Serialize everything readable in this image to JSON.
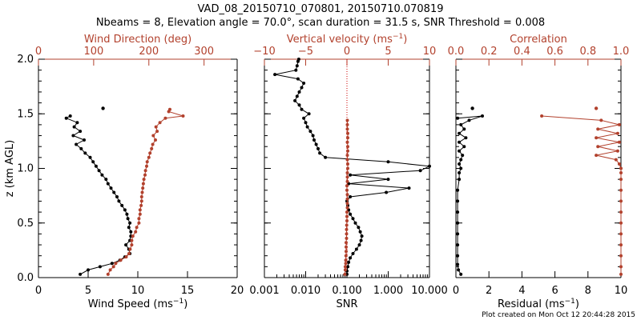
{
  "figure": {
    "title_line1": "VAD_08_20150710_070801, 20150710.070819",
    "title_line2": "Nbeams = 8, Elevation angle = 70.0°, scan duration = 31.5 s, SNR Threshold = 0.008",
    "credit": "Plot created on Mon Oct 12 20:44:28 2015"
  },
  "colors": {
    "primary": "#000000",
    "secondary": "#b2412d",
    "zero_line": "#cc0000"
  },
  "chart_data": [
    {
      "type": "line",
      "ylabel": "z (km AGL)",
      "ylim": [
        0,
        2
      ],
      "yticks": [
        0.0,
        0.5,
        1.0,
        1.5,
        2.0
      ],
      "yticklabels": [
        "0.0",
        "0.5",
        "1.0",
        "1.5",
        "2.0"
      ],
      "xlim_bottom": [
        0,
        20
      ],
      "xticks_bottom": [
        0,
        5,
        10,
        15,
        20
      ],
      "xticklabels_bottom": [
        "0",
        "5",
        "10",
        "15",
        "20"
      ],
      "xlabel_bottom": "Wind Speed (ms",
      "xlabel_bottom_sup": "−1",
      "xlabel_bottom_end": ")",
      "xlim_top": [
        0,
        360
      ],
      "xticks_top": [
        0,
        100,
        200,
        300
      ],
      "xticklabels_top": [
        "0",
        "100",
        "200",
        "300"
      ],
      "xlabel_top": "Wind Direction (deg)",
      "xlabel_top_sup": "",
      "xlabel_top_end": "",
      "series": [
        {
          "name": "Wind Speed",
          "axis": "bottom",
          "color": "#000000",
          "points": [
            [
              4.2,
              0.03
            ],
            [
              5.0,
              0.07
            ],
            [
              6.2,
              0.1
            ],
            [
              7.4,
              0.13
            ],
            [
              8.2,
              0.16
            ],
            [
              8.7,
              0.19
            ],
            [
              9.2,
              0.22
            ],
            [
              9.1,
              0.26
            ],
            [
              8.8,
              0.3
            ],
            [
              9.2,
              0.34
            ],
            [
              9.3,
              0.38
            ],
            [
              9.3,
              0.42
            ],
            [
              9.1,
              0.46
            ],
            [
              9.2,
              0.5
            ],
            [
              9.0,
              0.54
            ],
            [
              8.9,
              0.58
            ],
            [
              8.7,
              0.62
            ],
            [
              8.4,
              0.66
            ],
            [
              8.1,
              0.7
            ],
            [
              7.9,
              0.74
            ],
            [
              7.6,
              0.78
            ],
            [
              7.3,
              0.82
            ],
            [
              7.0,
              0.86
            ],
            [
              6.8,
              0.9
            ],
            [
              6.4,
              0.94
            ],
            [
              6.1,
              0.98
            ],
            [
              5.8,
              1.02
            ],
            [
              5.5,
              1.06
            ],
            [
              5.2,
              1.1
            ],
            [
              4.7,
              1.14
            ],
            [
              4.3,
              1.18
            ],
            [
              3.8,
              1.22
            ],
            [
              4.6,
              1.26
            ],
            [
              3.5,
              1.3
            ],
            [
              4.2,
              1.34
            ],
            [
              3.6,
              1.38
            ],
            [
              3.9,
              1.42
            ],
            [
              2.8,
              1.46
            ],
            [
              3.2,
              1.48
            ]
          ],
          "isolated": [
            [
              6.5,
              1.55
            ]
          ]
        },
        {
          "name": "Wind Direction",
          "axis": "top",
          "color": "#b2412d",
          "points": [
            [
              126,
              0.03
            ],
            [
              130,
              0.07
            ],
            [
              136,
              0.1
            ],
            [
              140,
              0.13
            ],
            [
              149,
              0.16
            ],
            [
              159,
              0.19
            ],
            [
              164,
              0.22
            ],
            [
              166,
              0.26
            ],
            [
              169,
              0.3
            ],
            [
              169,
              0.34
            ],
            [
              171,
              0.38
            ],
            [
              176,
              0.42
            ],
            [
              178,
              0.46
            ],
            [
              182,
              0.5
            ],
            [
              182,
              0.54
            ],
            [
              184,
              0.58
            ],
            [
              184,
              0.62
            ],
            [
              186,
              0.66
            ],
            [
              187,
              0.7
            ],
            [
              187,
              0.74
            ],
            [
              188,
              0.78
            ],
            [
              189,
              0.82
            ],
            [
              190,
              0.86
            ],
            [
              191,
              0.9
            ],
            [
              193,
              0.94
            ],
            [
              194,
              0.98
            ],
            [
              196,
              1.02
            ],
            [
              197,
              1.06
            ],
            [
              200,
              1.1
            ],
            [
              202,
              1.14
            ],
            [
              205,
              1.18
            ],
            [
              207,
              1.22
            ],
            [
              212,
              1.26
            ],
            [
              208,
              1.3
            ],
            [
              215,
              1.34
            ],
            [
              213,
              1.38
            ],
            [
              220,
              1.42
            ],
            [
              230,
              1.46
            ],
            [
              262,
              1.48
            ],
            [
              236,
              1.52
            ],
            [
              238,
              1.54
            ]
          ],
          "isolated": []
        }
      ]
    },
    {
      "type": "line",
      "ylim": [
        0,
        2
      ],
      "yticks": [
        0.0,
        0.5,
        1.0,
        1.5,
        2.0
      ],
      "xscale_bottom": "log",
      "xlim_bottom": [
        0.001,
        10
      ],
      "xticks_bottom": [
        0.001,
        0.01,
        0.1,
        1,
        10
      ],
      "xticklabels_bottom": [
        "0.001",
        "0.010",
        "0.100",
        "1.000",
        "10.000"
      ],
      "xlabel_bottom": "SNR",
      "xlabel_bottom_sup": "",
      "xlabel_bottom_end": "",
      "xlim_top": [
        -10,
        10
      ],
      "xticks_top": [
        -10,
        -5,
        0,
        5,
        10
      ],
      "xticklabels_top": [
        "−10",
        "−5",
        "0",
        "5",
        "10"
      ],
      "xlabel_top": "Vertical velocity (ms",
      "xlabel_top_sup": "−1",
      "xlabel_top_end": ")",
      "zero_line": {
        "axis": "top",
        "value": 0
      },
      "series": [
        {
          "name": "SNR",
          "axis": "bottom",
          "color": "#000000",
          "points": [
            [
              0.1,
              0.03
            ],
            [
              0.1,
              0.06
            ],
            [
              0.105,
              0.1
            ],
            [
              0.11,
              0.14
            ],
            [
              0.12,
              0.18
            ],
            [
              0.14,
              0.22
            ],
            [
              0.17,
              0.26
            ],
            [
              0.2,
              0.3
            ],
            [
              0.22,
              0.34
            ],
            [
              0.23,
              0.38
            ],
            [
              0.21,
              0.42
            ],
            [
              0.19,
              0.46
            ],
            [
              0.16,
              0.5
            ],
            [
              0.14,
              0.54
            ],
            [
              0.12,
              0.58
            ],
            [
              0.11,
              0.62
            ],
            [
              0.105,
              0.66
            ],
            [
              0.1,
              0.7
            ],
            [
              0.12,
              0.74
            ],
            [
              0.9,
              0.78
            ],
            [
              3.2,
              0.82
            ],
            [
              0.11,
              0.86
            ],
            [
              1.0,
              0.9
            ],
            [
              0.12,
              0.94
            ],
            [
              6.0,
              0.98
            ],
            [
              10.0,
              1.02
            ],
            [
              1.0,
              1.06
            ],
            [
              0.03,
              1.1
            ],
            [
              0.022,
              1.14
            ],
            [
              0.02,
              1.18
            ],
            [
              0.018,
              1.22
            ],
            [
              0.016,
              1.26
            ],
            [
              0.015,
              1.3
            ],
            [
              0.013,
              1.34
            ],
            [
              0.011,
              1.38
            ],
            [
              0.01,
              1.42
            ],
            [
              0.009,
              1.46
            ],
            [
              0.012,
              1.5
            ],
            [
              0.008,
              1.54
            ],
            [
              0.007,
              1.58
            ],
            [
              0.0055,
              1.62
            ],
            [
              0.0062,
              1.66
            ],
            [
              0.007,
              1.7
            ],
            [
              0.008,
              1.74
            ],
            [
              0.009,
              1.78
            ],
            [
              0.0065,
              1.82
            ],
            [
              0.0018,
              1.86
            ],
            [
              0.0058,
              1.9
            ],
            [
              0.0062,
              1.94
            ],
            [
              0.0065,
              1.98
            ],
            [
              0.0068,
              2.0
            ]
          ],
          "isolated": []
        },
        {
          "name": "Vertical velocity",
          "axis": "top",
          "color": "#b2412d",
          "points": [
            [
              -0.25,
              0.03
            ],
            [
              -0.2,
              0.07
            ],
            [
              -0.2,
              0.1
            ],
            [
              -0.15,
              0.13
            ],
            [
              -0.15,
              0.16
            ],
            [
              -0.12,
              0.2
            ],
            [
              -0.1,
              0.24
            ],
            [
              -0.1,
              0.28
            ],
            [
              -0.1,
              0.32
            ],
            [
              -0.05,
              0.36
            ],
            [
              -0.05,
              0.4
            ],
            [
              -0.05,
              0.44
            ],
            [
              -0.03,
              0.48
            ],
            [
              0.0,
              0.52
            ],
            [
              0.0,
              0.56
            ],
            [
              0.0,
              0.6
            ],
            [
              0.05,
              0.64
            ],
            [
              0.05,
              0.68
            ],
            [
              0.05,
              0.72
            ],
            [
              0.05,
              0.76
            ],
            [
              0.0,
              0.8
            ],
            [
              0.0,
              0.84
            ],
            [
              0.05,
              0.88
            ],
            [
              0.05,
              0.92
            ],
            [
              0.05,
              0.96
            ],
            [
              0.1,
              1.0
            ],
            [
              0.1,
              1.04
            ],
            [
              0.05,
              1.08
            ],
            [
              0.05,
              1.12
            ],
            [
              0.1,
              1.16
            ],
            [
              0.1,
              1.2
            ],
            [
              0.05,
              1.24
            ],
            [
              0.1,
              1.28
            ],
            [
              0.1,
              1.32
            ],
            [
              0.05,
              1.36
            ],
            [
              0.05,
              1.4
            ],
            [
              0.05,
              1.44
            ]
          ],
          "isolated": []
        }
      ]
    },
    {
      "type": "line",
      "ylim": [
        0,
        2
      ],
      "yticks": [
        0.0,
        0.5,
        1.0,
        1.5,
        2.0
      ],
      "xlim_bottom": [
        0,
        10
      ],
      "xticks_bottom": [
        0,
        2,
        4,
        6,
        8,
        10
      ],
      "xticklabels_bottom": [
        "0",
        "2",
        "4",
        "6",
        "8",
        "10"
      ],
      "xlabel_bottom": "Residual (ms",
      "xlabel_bottom_sup": "−1",
      "xlabel_bottom_end": ")",
      "xlim_top": [
        0,
        1
      ],
      "xticks_top": [
        0.0,
        0.2,
        0.4,
        0.6,
        0.8,
        1.0
      ],
      "xticklabels_top": [
        "0.0",
        "0.2",
        "0.4",
        "0.6",
        "0.8",
        "1.0"
      ],
      "xlabel_top": "Correlation",
      "xlabel_top_sup": "",
      "xlabel_top_end": "",
      "series": [
        {
          "name": "Residual",
          "axis": "bottom",
          "color": "#000000",
          "points": [
            [
              0.3,
              0.03
            ],
            [
              0.15,
              0.07
            ],
            [
              0.1,
              0.12
            ],
            [
              0.1,
              0.2
            ],
            [
              0.1,
              0.3
            ],
            [
              0.1,
              0.4
            ],
            [
              0.1,
              0.5
            ],
            [
              0.1,
              0.6
            ],
            [
              0.1,
              0.7
            ],
            [
              0.1,
              0.8
            ],
            [
              0.2,
              0.9
            ],
            [
              0.2,
              0.96
            ],
            [
              0.3,
              1.0
            ],
            [
              0.2,
              1.04
            ],
            [
              0.3,
              1.08
            ],
            [
              0.4,
              1.12
            ],
            [
              0.2,
              1.16
            ],
            [
              0.5,
              1.2
            ],
            [
              0.2,
              1.24
            ],
            [
              0.6,
              1.28
            ],
            [
              0.2,
              1.32
            ],
            [
              0.5,
              1.36
            ],
            [
              0.3,
              1.4
            ],
            [
              0.8,
              1.44
            ],
            [
              1.6,
              1.48
            ],
            [
              0.1,
              1.46
            ]
          ],
          "isolated": [
            [
              1.0,
              1.55
            ]
          ]
        },
        {
          "name": "Correlation",
          "axis": "top",
          "color": "#b2412d",
          "points": [
            [
              1.0,
              0.03
            ],
            [
              1.0,
              0.1
            ],
            [
              1.0,
              0.2
            ],
            [
              1.0,
              0.3
            ],
            [
              1.0,
              0.4
            ],
            [
              1.0,
              0.5
            ],
            [
              1.0,
              0.6
            ],
            [
              1.0,
              0.7
            ],
            [
              1.0,
              0.8
            ],
            [
              1.0,
              0.9
            ],
            [
              1.0,
              0.96
            ],
            [
              1.0,
              1.0
            ],
            [
              0.99,
              1.04
            ],
            [
              0.97,
              1.08
            ],
            [
              0.85,
              1.12
            ],
            [
              0.98,
              1.16
            ],
            [
              0.86,
              1.2
            ],
            [
              0.99,
              1.24
            ],
            [
              0.85,
              1.28
            ],
            [
              0.98,
              1.32
            ],
            [
              0.86,
              1.36
            ],
            [
              0.99,
              1.4
            ],
            [
              0.88,
              1.44
            ],
            [
              0.52,
              1.48
            ]
          ],
          "isolated": [
            [
              0.85,
              1.55
            ]
          ]
        }
      ]
    }
  ]
}
